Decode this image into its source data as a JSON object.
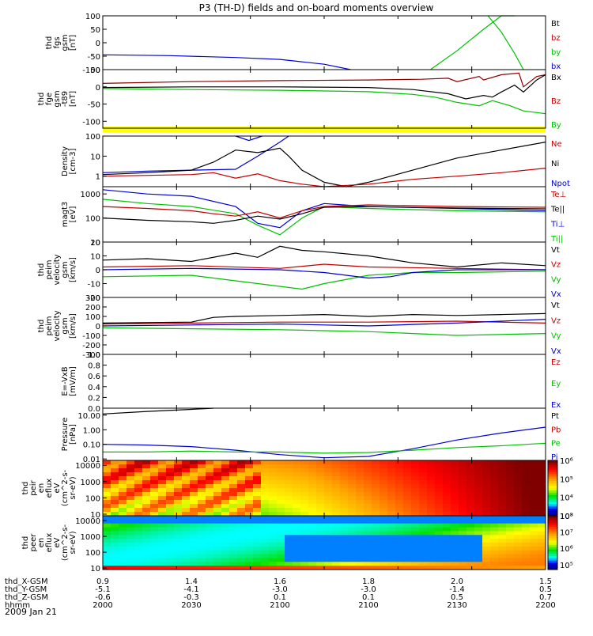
{
  "title": "P3 (TH-D) fields and on-board moments overview",
  "date_label": "2009 Jan 21",
  "colors": {
    "black": "#000000",
    "red": "#c00000",
    "green": "#00c000",
    "blue": "#0000d0",
    "yellow": "#ffff00",
    "darkred": "#8b0000"
  },
  "chart_data": [
    {
      "type": "line",
      "ylabel": [
        "thd",
        "fgs",
        "gsm",
        "[nT]"
      ],
      "ylim": [
        -100,
        100
      ],
      "ticks": [
        "100",
        "50",
        "0",
        "-50",
        "-100"
      ],
      "legend": [
        {
          "label": "Bt",
          "color": "#000000"
        },
        {
          "label": "bz",
          "color": "#c00000"
        },
        {
          "label": "by",
          "color": "#00c000"
        },
        {
          "label": "bx",
          "color": "#0000d0"
        }
      ],
      "series": [
        {
          "name": "bx",
          "color": "#0000d0",
          "x": [
            0.0,
            0.15,
            0.3,
            0.4,
            0.5,
            0.56
          ],
          "y": [
            -45,
            -48,
            -55,
            -62,
            -80,
            -100
          ]
        },
        {
          "name": "by",
          "color": "#00c000",
          "x": [
            0.74,
            0.8,
            0.86,
            0.9,
            0.93
          ],
          "y": [
            -100,
            -30,
            50,
            100,
            100
          ]
        },
        {
          "name": "by2",
          "color": "#00c000",
          "x": [
            0.87,
            0.9,
            0.93,
            0.95
          ],
          "y": [
            100,
            40,
            -40,
            -100
          ]
        }
      ]
    },
    {
      "type": "line",
      "ylabel": [
        "thd",
        "fge",
        "gsm",
        "-t89",
        "[nT]"
      ],
      "ylim": [
        -120,
        50
      ],
      "ticks": [
        "50",
        "0",
        "-50",
        "-100"
      ],
      "legend": [
        {
          "label": "Bx",
          "color": "#000000"
        },
        {
          "label": "Bz",
          "color": "#c00000"
        },
        {
          "label": "By",
          "color": "#00c000"
        }
      ],
      "series": [
        {
          "name": "Bz",
          "color": "#8b0000",
          "x": [
            0.0,
            0.2,
            0.4,
            0.6,
            0.72,
            0.78,
            0.8,
            0.85,
            0.86,
            0.9,
            0.94,
            0.95,
            0.98,
            1.0
          ],
          "y": [
            10,
            15,
            18,
            20,
            22,
            25,
            15,
            30,
            20,
            35,
            40,
            0,
            30,
            35
          ]
        },
        {
          "name": "Bx",
          "color": "#000000",
          "x": [
            0.0,
            0.2,
            0.4,
            0.6,
            0.7,
            0.78,
            0.82,
            0.86,
            0.88,
            0.9,
            0.93,
            0.95,
            0.98,
            1.0
          ],
          "y": [
            -2,
            0,
            0,
            -2,
            -8,
            -20,
            -35,
            -25,
            -30,
            -15,
            5,
            -15,
            20,
            35
          ]
        },
        {
          "name": "By",
          "color": "#00c000",
          "x": [
            0.0,
            0.2,
            0.4,
            0.6,
            0.7,
            0.75,
            0.8,
            0.85,
            0.88,
            0.92,
            0.95,
            1.0
          ],
          "y": [
            -5,
            -8,
            -10,
            -14,
            -22,
            -30,
            -45,
            -55,
            -40,
            -55,
            -70,
            -78
          ]
        }
      ]
    },
    {
      "type": "line",
      "ylabel": [
        "Density",
        "[cm-3]"
      ],
      "yscale": "log",
      "ylim": [
        0.3,
        100
      ],
      "ticks": [
        "100",
        "10",
        "1"
      ],
      "legend": [
        {
          "label": "Ne",
          "color": "#c00000"
        },
        {
          "label": "Ni",
          "color": "#000000"
        },
        {
          "label": "Npot",
          "color": "#0000d0"
        }
      ],
      "series": [
        {
          "name": "Npot",
          "color": "#0000d0",
          "x": [
            0.0,
            0.1,
            0.2,
            0.3,
            0.35,
            0.4,
            0.42
          ],
          "y": [
            1.5,
            1.8,
            2.0,
            2.2,
            10,
            50,
            100
          ]
        },
        {
          "name": "Npot2",
          "color": "#0000d0",
          "x": [
            0.3,
            0.33,
            0.36
          ],
          "y": [
            100,
            60,
            100
          ]
        },
        {
          "name": "Ni",
          "color": "#000000",
          "x": [
            0.0,
            0.1,
            0.2,
            0.25,
            0.3,
            0.35,
            0.4,
            0.42,
            0.45,
            0.5,
            0.55,
            0.6,
            0.7,
            0.8,
            0.9,
            1.0
          ],
          "y": [
            1.2,
            1.5,
            2,
            5,
            20,
            15,
            25,
            10,
            2,
            0.5,
            0.3,
            0.5,
            2,
            8,
            20,
            50
          ]
        },
        {
          "name": "Ne",
          "color": "#c00000",
          "x": [
            0.0,
            0.1,
            0.2,
            0.25,
            0.3,
            0.35,
            0.4,
            0.45,
            0.5,
            0.6,
            0.7,
            0.8,
            0.9,
            1.0
          ],
          "y": [
            1,
            1.1,
            1.2,
            1.5,
            0.8,
            1.3,
            0.6,
            0.4,
            0.3,
            0.4,
            0.7,
            1.0,
            1.5,
            2.5
          ]
        }
      ]
    },
    {
      "type": "line",
      "ylabel": [
        "magt3",
        "[eV]"
      ],
      "yscale": "log",
      "ylim": [
        10,
        2000
      ],
      "ticks": [
        "1000",
        "100",
        "10"
      ],
      "legend": [
        {
          "label": "Te⊥",
          "color": "#c00000"
        },
        {
          "label": "Te||",
          "color": "#000000"
        },
        {
          "label": "Ti⊥",
          "color": "#0000d0"
        },
        {
          "label": "Ti||",
          "color": "#00c000"
        }
      ],
      "series": [
        {
          "name": "Ti⊥",
          "color": "#0000d0",
          "x": [
            0.0,
            0.1,
            0.2,
            0.3,
            0.35,
            0.4,
            0.45,
            0.5,
            0.6,
            0.8,
            1.0
          ],
          "y": [
            1500,
            1000,
            800,
            300,
            60,
            40,
            200,
            400,
            300,
            250,
            200
          ]
        },
        {
          "name": "Ti||",
          "color": "#00c000",
          "x": [
            0.0,
            0.1,
            0.2,
            0.3,
            0.35,
            0.4,
            0.45,
            0.5,
            0.6,
            0.8,
            1.0
          ],
          "y": [
            600,
            400,
            300,
            150,
            50,
            20,
            100,
            300,
            250,
            200,
            180
          ]
        },
        {
          "name": "Te⊥",
          "color": "#c00000",
          "x": [
            0.0,
            0.1,
            0.2,
            0.25,
            0.3,
            0.35,
            0.4,
            0.45,
            0.5,
            0.6,
            0.8,
            1.0
          ],
          "y": [
            300,
            250,
            200,
            150,
            120,
            180,
            100,
            200,
            300,
            350,
            300,
            280
          ]
        },
        {
          "name": "Te||",
          "color": "#000000",
          "x": [
            0.0,
            0.1,
            0.2,
            0.25,
            0.3,
            0.35,
            0.4,
            0.45,
            0.5,
            0.6,
            0.8,
            1.0
          ],
          "y": [
            100,
            80,
            70,
            60,
            80,
            120,
            90,
            150,
            280,
            300,
            260,
            240
          ]
        }
      ]
    },
    {
      "type": "line",
      "ylabel": [
        "thd",
        "peim",
        "velocity",
        "gsm",
        "[km/s]"
      ],
      "ylim": [
        -20,
        20
      ],
      "ticks": [
        "20",
        "10",
        "0",
        "-10",
        "-20"
      ],
      "legend": [
        {
          "label": "Vt",
          "color": "#000000"
        },
        {
          "label": "Vz",
          "color": "#c00000"
        },
        {
          "label": "Vy",
          "color": "#00c000"
        },
        {
          "label": "Vx",
          "color": "#0000d0"
        }
      ],
      "series": [
        {
          "name": "Vt",
          "color": "#000000",
          "x": [
            0.0,
            0.1,
            0.2,
            0.3,
            0.35,
            0.4,
            0.45,
            0.5,
            0.6,
            0.7,
            0.8,
            0.9,
            1.0
          ],
          "y": [
            7,
            8,
            6,
            12,
            9,
            17,
            14,
            13,
            10,
            5,
            2,
            5,
            3
          ]
        },
        {
          "name": "Vz",
          "color": "#c00000",
          "x": [
            0.0,
            0.2,
            0.4,
            0.5,
            0.6,
            0.8,
            1.0
          ],
          "y": [
            2,
            3,
            1,
            4,
            2,
            1,
            0
          ]
        },
        {
          "name": "Vy",
          "color": "#00c000",
          "x": [
            0.0,
            0.2,
            0.3,
            0.4,
            0.45,
            0.5,
            0.6,
            0.7,
            0.8,
            1.0
          ],
          "y": [
            -5,
            -4,
            -8,
            -12,
            -14,
            -10,
            -4,
            -2,
            -2,
            -1
          ]
        },
        {
          "name": "Vx",
          "color": "#0000d0",
          "x": [
            0.0,
            0.2,
            0.4,
            0.5,
            0.6,
            0.65,
            0.7,
            0.8,
            1.0
          ],
          "y": [
            0,
            1,
            0,
            -2,
            -6,
            -5,
            -2,
            0,
            0
          ]
        }
      ]
    },
    {
      "type": "line",
      "ylabel": [
        "thd",
        "peim",
        "velocity",
        "gsm",
        "[km/s]"
      ],
      "ylim": [
        -300,
        300
      ],
      "ticks": [
        "300",
        "200",
        "100",
        "0",
        "-100",
        "-200",
        "-300"
      ],
      "legend": [
        {
          "label": "Vt",
          "color": "#000000"
        },
        {
          "label": "Vz",
          "color": "#c00000"
        },
        {
          "label": "Vy",
          "color": "#00c000"
        },
        {
          "label": "Vx",
          "color": "#0000d0"
        }
      ],
      "series": [
        {
          "name": "Vt",
          "color": "#000000",
          "x": [
            0.0,
            0.2,
            0.25,
            0.3,
            0.4,
            0.5,
            0.6,
            0.7,
            0.8,
            0.9,
            1.0
          ],
          "y": [
            30,
            40,
            90,
            100,
            110,
            120,
            100,
            120,
            110,
            120,
            130
          ]
        },
        {
          "name": "Vz",
          "color": "#c00000",
          "x": [
            0.0,
            0.2,
            0.4,
            0.6,
            0.8,
            1.0
          ],
          "y": [
            20,
            30,
            40,
            40,
            50,
            30
          ]
        },
        {
          "name": "Vx",
          "color": "#0000d0",
          "x": [
            0.0,
            0.2,
            0.4,
            0.6,
            0.8,
            0.9,
            1.0
          ],
          "y": [
            0,
            10,
            20,
            0,
            30,
            50,
            70
          ]
        },
        {
          "name": "Vy",
          "color": "#00c000",
          "x": [
            0.0,
            0.2,
            0.4,
            0.6,
            0.8,
            1.0
          ],
          "y": [
            -20,
            -30,
            -40,
            -60,
            -100,
            -80
          ]
        }
      ]
    },
    {
      "type": "line",
      "ylabel": [
        "E=-VxB",
        "[mV/m]"
      ],
      "ylim": [
        0,
        1
      ],
      "ticks": [
        "1.0",
        "0.8",
        "0.6",
        "0.4",
        "0.2",
        "0.0"
      ],
      "legend": [
        {
          "label": "Ez",
          "color": "#c00000"
        },
        {
          "label": "Ey",
          "color": "#00c000"
        },
        {
          "label": "Ex",
          "color": "#0000d0"
        }
      ],
      "series": []
    },
    {
      "type": "line",
      "ylabel": [
        "Pressure",
        "[nPa]"
      ],
      "yscale": "log",
      "ylim": [
        0.008,
        30
      ],
      "ticks": [
        "10.00",
        "1.00",
        "0.10",
        "0.01"
      ],
      "legend": [
        {
          "label": "Pt",
          "color": "#000000"
        },
        {
          "label": "Pb",
          "color": "#c00000"
        },
        {
          "label": "Pe",
          "color": "#00c000"
        },
        {
          "label": "Pi",
          "color": "#0000d0"
        }
      ],
      "series": [
        {
          "name": "Pt",
          "color": "#000000",
          "x": [
            0.0,
            0.1,
            0.2,
            0.25
          ],
          "y": [
            12,
            18,
            25,
            30
          ]
        },
        {
          "name": "Pi",
          "color": "#0000d0",
          "x": [
            0.0,
            0.1,
            0.2,
            0.3,
            0.4,
            0.5,
            0.6,
            0.7,
            0.8,
            0.9,
            1.0
          ],
          "y": [
            0.1,
            0.09,
            0.07,
            0.04,
            0.02,
            0.012,
            0.015,
            0.05,
            0.2,
            0.6,
            1.5
          ]
        },
        {
          "name": "Pe",
          "color": "#00c000",
          "x": [
            0.0,
            0.1,
            0.2,
            0.3,
            0.4,
            0.5,
            0.6,
            0.7,
            0.8,
            0.9,
            1.0
          ],
          "y": [
            0.03,
            0.03,
            0.035,
            0.03,
            0.03,
            0.025,
            0.028,
            0.04,
            0.06,
            0.08,
            0.12
          ]
        }
      ]
    },
    {
      "type": "heatmap",
      "ylabel": [
        "thd",
        "peir",
        "en",
        "eflux",
        "eV",
        "(cm^2-s-",
        "sr-eV)"
      ],
      "yscale": "log",
      "ylim": [
        8,
        20000
      ],
      "ticks": [
        "10000",
        "1000",
        "100",
        "10"
      ],
      "colorbar_ticks": [
        "10⁶",
        "10⁵",
        "10⁴",
        "10³"
      ],
      "colorbar_range": [
        1000,
        1000000
      ]
    },
    {
      "type": "heatmap",
      "ylabel": [
        "thd",
        "peer",
        "en",
        "eflux",
        "eV",
        "(cm^2-s-",
        "sr-eV)"
      ],
      "yscale": "log",
      "ylim": [
        8,
        20000
      ],
      "ticks": [
        "10000",
        "1000",
        "100",
        "10"
      ],
      "colorbar_ticks": [
        "10⁸",
        "10⁷",
        "10⁶",
        "10⁵"
      ],
      "colorbar_range": [
        50000,
        100000000
      ]
    }
  ],
  "footer": {
    "rows": [
      {
        "label": "thd_X-GSM",
        "values": [
          "0.9",
          "1.4",
          "1.6",
          "1.8",
          "2.0",
          "1.5"
        ]
      },
      {
        "label": "thd_Y-GSM",
        "values": [
          "-5.1",
          "-4.1",
          "-3.0",
          "-3.0",
          "-1.4",
          "0.5"
        ]
      },
      {
        "label": "thd_Z-GSM",
        "values": [
          "-0.6",
          "-0.3",
          "0.1",
          "0.1",
          "0.5",
          "0.7"
        ]
      },
      {
        "label": "hhmm",
        "values": [
          "2000",
          "2030",
          "2100",
          "2100",
          "2130",
          "2200"
        ]
      }
    ]
  }
}
